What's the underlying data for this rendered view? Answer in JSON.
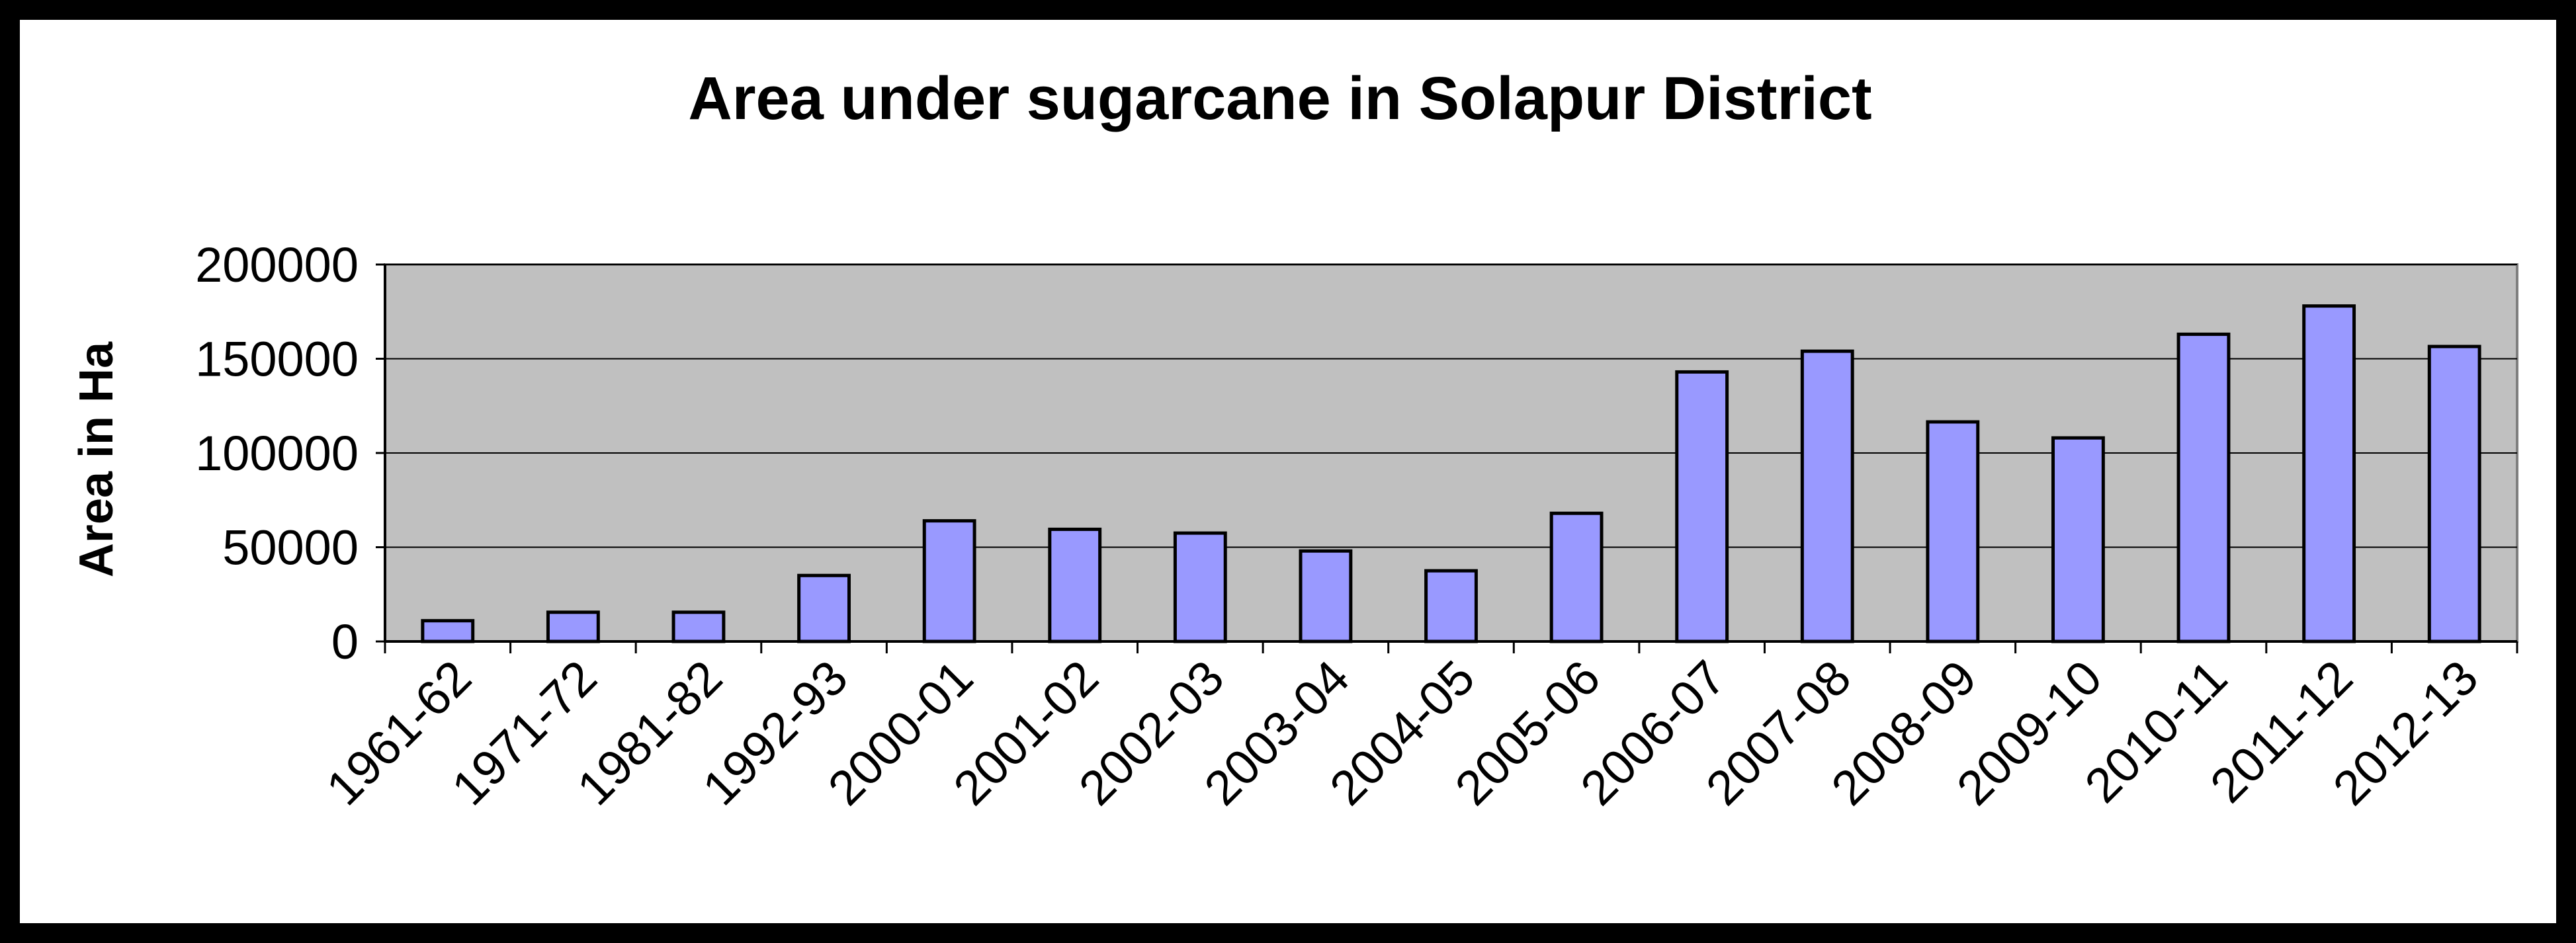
{
  "chart_data": {
    "type": "bar",
    "title": "Area under sugarcane in Solapur District",
    "xlabel": "",
    "ylabel": "Area in Ha",
    "categories": [
      "1961-62",
      "1971-72",
      "1981-82",
      "1992-93",
      "2000-01",
      "2001-02",
      "2002-03",
      "2003-04",
      "2004-05",
      "2005-06",
      "2006-07",
      "2007-08",
      "2008-09",
      "2009-10",
      "2010-11",
      "2011-12",
      "2012-13"
    ],
    "values": [
      11000,
      15500,
      15500,
      35000,
      64000,
      59500,
      57500,
      48000,
      37500,
      68000,
      143000,
      154000,
      116500,
      108000,
      163000,
      178000,
      156500
    ],
    "ylim": [
      0,
      200000
    ],
    "yticks": [
      "0",
      "50000",
      "100000",
      "150000",
      "200000"
    ],
    "grid": true,
    "legend": "none",
    "colors": {
      "bar_fill": "#9999ff",
      "plot_bg": "#c0c0c0",
      "gridline": "#000000",
      "frame": "#000000"
    }
  }
}
